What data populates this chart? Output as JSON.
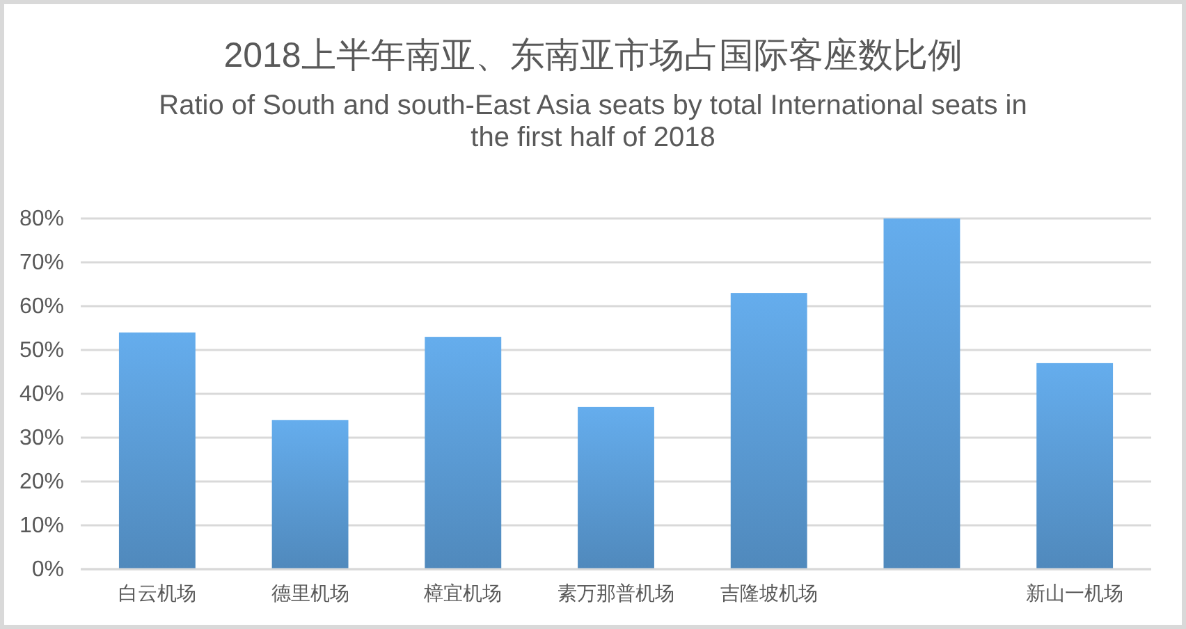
{
  "chart_data": {
    "type": "bar",
    "title": "2018上半年南亚、东南亚市场占国际客座数比例",
    "subtitle": "Ratio of South and south-East Asia seats by total International seats in the first half of 2018",
    "categories": [
      "白云机场",
      "德里机场",
      "樟宜机场",
      "素万那普机场",
      "吉隆坡机场",
      null,
      "新山一机场"
    ],
    "values": [
      54,
      34,
      53,
      37,
      63,
      80,
      47
    ],
    "color": "#5b9bd5",
    "ylim": [
      0,
      80
    ],
    "yticks": [
      {
        "value": 0,
        "label": "0%"
      },
      {
        "value": 10,
        "label": "10%"
      },
      {
        "value": 20,
        "label": "20%"
      },
      {
        "value": 30,
        "label": "30%"
      },
      {
        "value": 40,
        "label": "40%"
      },
      {
        "value": 50,
        "label": "50%"
      },
      {
        "value": 60,
        "label": "60%"
      },
      {
        "value": 70,
        "label": "70%"
      },
      {
        "value": 80,
        "label": "80%"
      }
    ],
    "grid": "y"
  }
}
